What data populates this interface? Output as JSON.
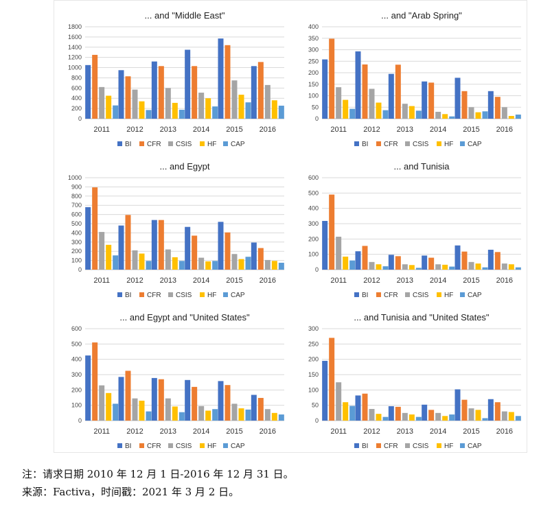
{
  "chart_data": [
    {
      "type": "bar",
      "title": "... and \"Middle East\"",
      "categories": [
        "2011",
        "2012",
        "2013",
        "2014",
        "2015",
        "2016"
      ],
      "ylim": [
        0,
        1800
      ],
      "yticks": [
        0,
        200,
        400,
        600,
        800,
        1000,
        1200,
        1400,
        1600,
        1800
      ],
      "series": [
        {
          "name": "BI",
          "values": [
            1050,
            950,
            1120,
            1350,
            1570,
            1030
          ]
        },
        {
          "name": "CFR",
          "values": [
            1250,
            830,
            1030,
            1030,
            1440,
            1110
          ]
        },
        {
          "name": "CSIS",
          "values": [
            620,
            570,
            600,
            510,
            750,
            660
          ]
        },
        {
          "name": "HF",
          "values": [
            450,
            340,
            310,
            400,
            470,
            360
          ]
        },
        {
          "name": "CAP",
          "values": [
            260,
            170,
            175,
            240,
            320,
            255
          ]
        }
      ],
      "legend": "bottom",
      "grid": true
    },
    {
      "type": "bar",
      "title": "... and \"Arab Spring\"",
      "categories": [
        "2011",
        "2012",
        "2013",
        "2014",
        "2015",
        "2016"
      ],
      "ylim": [
        0,
        400
      ],
      "yticks": [
        0,
        50,
        100,
        150,
        200,
        250,
        300,
        350,
        400
      ],
      "series": [
        {
          "name": "BI",
          "values": [
            258,
            293,
            195,
            162,
            178,
            120
          ]
        },
        {
          "name": "CFR",
          "values": [
            348,
            236,
            235,
            157,
            120,
            95
          ]
        },
        {
          "name": "CSIS",
          "values": [
            137,
            130,
            65,
            30,
            50,
            50
          ]
        },
        {
          "name": "HF",
          "values": [
            82,
            70,
            55,
            20,
            28,
            12
          ]
        },
        {
          "name": "CAP",
          "values": [
            43,
            37,
            35,
            10,
            32,
            18
          ]
        }
      ],
      "legend": "bottom",
      "grid": true
    },
    {
      "type": "bar",
      "title": "... and Egypt",
      "categories": [
        "2011",
        "2012",
        "2013",
        "2014",
        "2015",
        "2016"
      ],
      "ylim": [
        0,
        1000
      ],
      "yticks": [
        0,
        100,
        200,
        300,
        400,
        500,
        600,
        700,
        800,
        900,
        1000
      ],
      "series": [
        {
          "name": "BI",
          "values": [
            680,
            480,
            540,
            465,
            520,
            295
          ]
        },
        {
          "name": "CFR",
          "values": [
            895,
            595,
            540,
            370,
            405,
            235
          ]
        },
        {
          "name": "CSIS",
          "values": [
            410,
            210,
            220,
            130,
            170,
            105
          ]
        },
        {
          "name": "HF",
          "values": [
            270,
            175,
            135,
            90,
            115,
            95
          ]
        },
        {
          "name": "CAP",
          "values": [
            155,
            95,
            95,
            95,
            140,
            75
          ]
        }
      ],
      "legend": "bottom",
      "grid": true
    },
    {
      "type": "bar",
      "title": "... and Tunisia",
      "categories": [
        "2011",
        "2012",
        "2013",
        "2014",
        "2015",
        "2016"
      ],
      "ylim": [
        0,
        600
      ],
      "yticks": [
        0,
        100,
        200,
        300,
        400,
        500,
        600
      ],
      "series": [
        {
          "name": "BI",
          "values": [
            318,
            120,
            97,
            92,
            158,
            130
          ]
        },
        {
          "name": "CFR",
          "values": [
            490,
            155,
            88,
            78,
            118,
            115
          ]
        },
        {
          "name": "CSIS",
          "values": [
            215,
            50,
            35,
            35,
            50,
            40
          ]
        },
        {
          "name": "HF",
          "values": [
            85,
            35,
            30,
            32,
            40,
            35
          ]
        },
        {
          "name": "CAP",
          "values": [
            60,
            22,
            12,
            20,
            15,
            15
          ]
        }
      ],
      "legend": "bottom",
      "grid": true
    },
    {
      "type": "bar",
      "title": "... and Egypt and \"United States\"",
      "categories": [
        "2011",
        "2012",
        "2013",
        "2014",
        "2015",
        "2016"
      ],
      "ylim": [
        0,
        600
      ],
      "yticks": [
        0,
        100,
        200,
        300,
        400,
        500,
        600
      ],
      "series": [
        {
          "name": "BI",
          "values": [
            425,
            285,
            278,
            265,
            258,
            168
          ]
        },
        {
          "name": "CFR",
          "values": [
            510,
            325,
            270,
            220,
            232,
            148
          ]
        },
        {
          "name": "CSIS",
          "values": [
            230,
            145,
            145,
            95,
            110,
            75
          ]
        },
        {
          "name": "HF",
          "values": [
            180,
            130,
            92,
            65,
            80,
            50
          ]
        },
        {
          "name": "CAP",
          "values": [
            110,
            60,
            55,
            75,
            72,
            40
          ]
        }
      ],
      "legend": "bottom",
      "grid": true
    },
    {
      "type": "bar",
      "title": "... and Tunisia and \"United States\"",
      "categories": [
        "2011",
        "2012",
        "2013",
        "2014",
        "2015",
        "2016"
      ],
      "ylim": [
        0,
        300
      ],
      "yticks": [
        0,
        50,
        100,
        150,
        200,
        250,
        300
      ],
      "series": [
        {
          "name": "BI",
          "values": [
            195,
            82,
            47,
            52,
            102,
            70
          ]
        },
        {
          "name": "CFR",
          "values": [
            270,
            88,
            45,
            35,
            68,
            60
          ]
        },
        {
          "name": "CSIS",
          "values": [
            125,
            38,
            25,
            25,
            40,
            30
          ]
        },
        {
          "name": "HF",
          "values": [
            60,
            22,
            20,
            15,
            35,
            28
          ]
        },
        {
          "name": "CAP",
          "values": [
            48,
            12,
            12,
            20,
            8,
            15
          ]
        }
      ],
      "legend": "bottom",
      "grid": true
    }
  ],
  "colors": {
    "BI": "#4472c4",
    "CFR": "#ed7d31",
    "CSIS": "#a5a5a5",
    "HF": "#ffc000",
    "CAP": "#5b9bd5",
    "grid": "#d9d9d9",
    "axis": "#bfbfbf"
  },
  "footer": {
    "note": "注：请求日期 2010 年 12 月 1 日-2016 年 12 月 31 日。",
    "source": "来源：Factiva，时间戳：2021 年 3 月 2 日。"
  }
}
